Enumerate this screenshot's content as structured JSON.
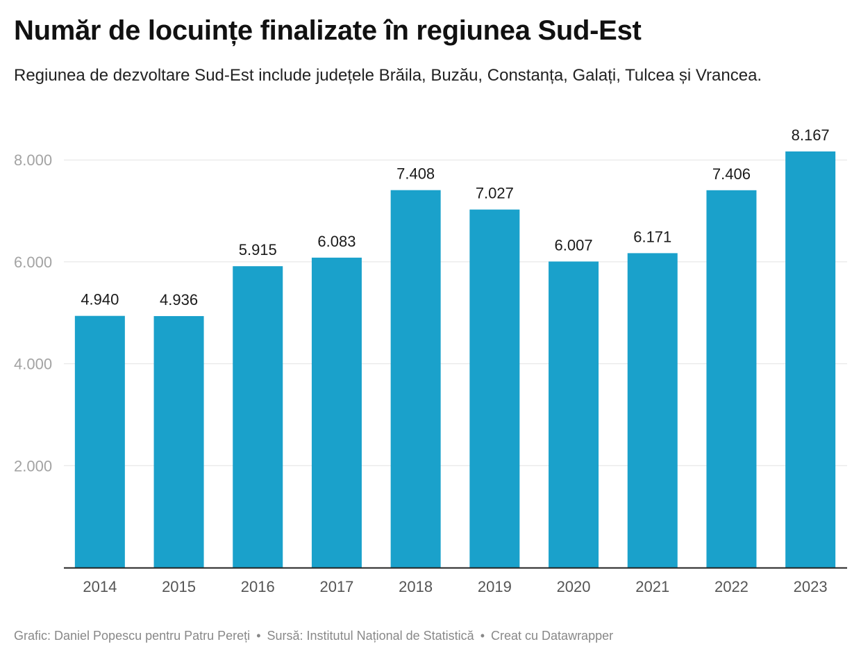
{
  "header": {
    "title": "Număr de locuințe finalizate în regiunea Sud-Est",
    "subtitle": "Regiunea de dezvoltare Sud-Est include județele Brăila, Buzău, Constanța, Galați, Tulcea și Vrancea."
  },
  "chart_data": {
    "type": "bar",
    "categories": [
      "2014",
      "2015",
      "2016",
      "2017",
      "2018",
      "2019",
      "2020",
      "2021",
      "2022",
      "2023"
    ],
    "values": [
      4940,
      4936,
      5915,
      6083,
      7408,
      7027,
      6007,
      6171,
      7406,
      8167
    ],
    "value_labels": [
      "4.940",
      "4.936",
      "5.915",
      "6.083",
      "7.408",
      "7.027",
      "6.007",
      "6.171",
      "7.406",
      "8.167"
    ],
    "y_ticks": [
      2000,
      4000,
      6000,
      8000
    ],
    "y_tick_labels": [
      "2.000",
      "4.000",
      "6.000",
      "8.000"
    ],
    "ylim": [
      0,
      8167
    ],
    "grid": true,
    "bar_color": "#1aa1cb"
  },
  "footer": {
    "credit": "Grafic: Daniel Popescu pentru Patru Pereți",
    "source": "Sursă: Institutul Național de Statistică",
    "tool": "Creat cu Datawrapper",
    "separator": "•"
  }
}
